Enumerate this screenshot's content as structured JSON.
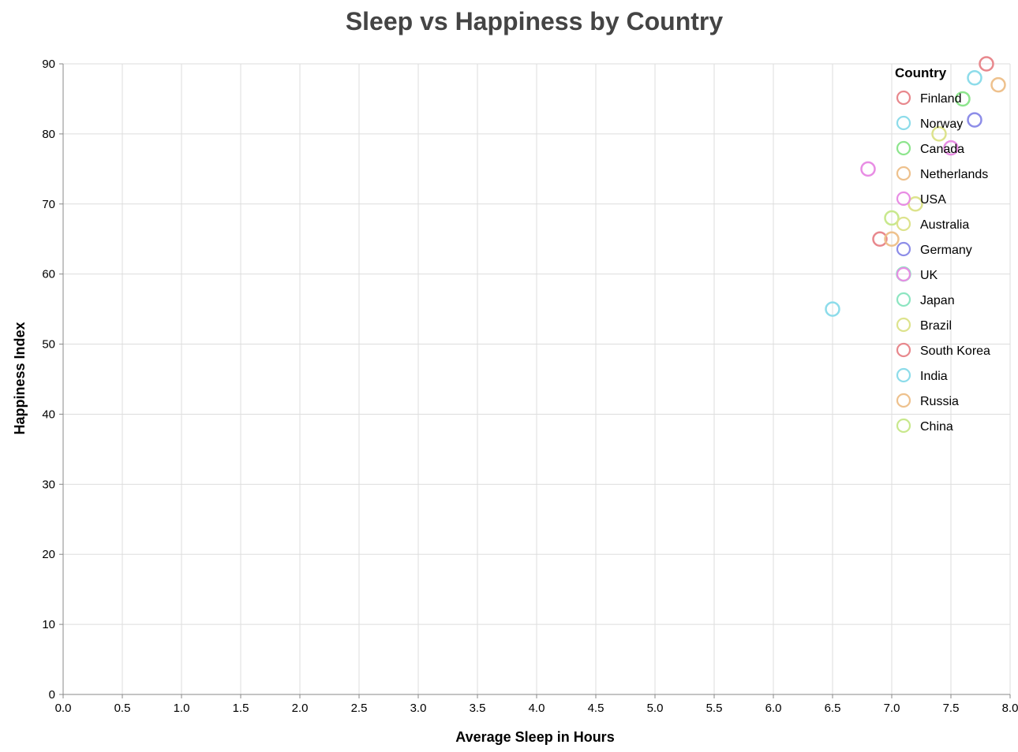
{
  "chart_data": {
    "type": "scatter",
    "title": "Sleep vs Happiness by Country",
    "xlabel": "Average Sleep in Hours",
    "ylabel": "Happiness Index",
    "xlim": [
      0,
      8
    ],
    "ylim": [
      0,
      90
    ],
    "x_ticks": [
      "0.0",
      "0.5",
      "1.0",
      "1.5",
      "2.0",
      "2.5",
      "3.0",
      "3.5",
      "4.0",
      "4.5",
      "5.0",
      "5.5",
      "6.0",
      "6.5",
      "7.0",
      "7.5",
      "8.0"
    ],
    "y_ticks": [
      "0",
      "10",
      "20",
      "30",
      "40",
      "50",
      "60",
      "70",
      "80",
      "90"
    ],
    "grid": true,
    "legend_title": "Country",
    "legend_position": "top-right",
    "series": [
      {
        "name": "Finland",
        "color": "#e8888d",
        "x": 7.8,
        "y": 90
      },
      {
        "name": "Norway",
        "color": "#8ddcea",
        "x": 7.7,
        "y": 88
      },
      {
        "name": "Canada",
        "color": "#8de58d",
        "x": 7.6,
        "y": 85
      },
      {
        "name": "Netherlands",
        "color": "#eec18d",
        "x": 7.9,
        "y": 87
      },
      {
        "name": "USA",
        "color": "#e88de4",
        "x": 6.8,
        "y": 75
      },
      {
        "name": "Australia",
        "color": "#dde38d",
        "x": 7.4,
        "y": 80
      },
      {
        "name": "Germany",
        "color": "#8d8de8",
        "x": 7.7,
        "y": 82
      },
      {
        "name": "UK",
        "color": "#e88de4",
        "x": 7.5,
        "y": 78
      },
      {
        "name": "Japan",
        "color": "#8de5c1",
        "x": 7.1,
        "y": 60
      },
      {
        "name": "Brazil",
        "color": "#dde38d",
        "x": 7.2,
        "y": 70
      },
      {
        "name": "South Korea",
        "color": "#e8888d",
        "x": 6.9,
        "y": 65
      },
      {
        "name": "India",
        "color": "#8ddcea",
        "x": 6.5,
        "y": 55
      },
      {
        "name": "Russia",
        "color": "#eec18d",
        "x": 7.0,
        "y": 65
      },
      {
        "name": "China",
        "color": "#c8e88d",
        "x": 7.0,
        "y": 68
      }
    ]
  }
}
